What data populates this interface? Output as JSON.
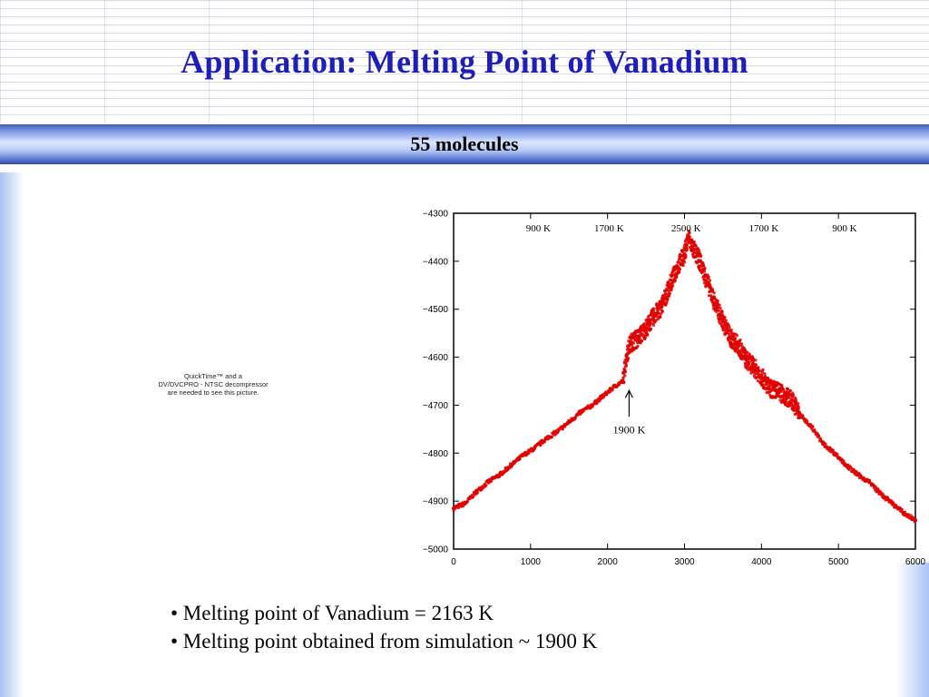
{
  "slide": {
    "title": "Application:  Melting Point of Vanadium",
    "subtitle": "55 molecules"
  },
  "media_placeholder": {
    "lines": [
      "QuickTime™ and a",
      "DV/DVCPRO - NTSC decompressor",
      "are needed to see this picture."
    ]
  },
  "bullets": [
    "• Melting point of Vanadium = 2163 K",
    "• Melting point obtained from simulation ~ 1900 K"
  ],
  "chart_data": {
    "type": "scatter",
    "title": "",
    "xlabel": "",
    "ylabel": "",
    "xlim": [
      0,
      6000
    ],
    "ylim": [
      -5000,
      -4300
    ],
    "xticks": [
      0,
      1000,
      2000,
      3000,
      4000,
      5000,
      6000
    ],
    "yticks": [
      -4300,
      -4400,
      -4500,
      -4600,
      -4700,
      -4800,
      -4900,
      -5000
    ],
    "xtick_labels": [
      "0",
      "1000",
      "2000",
      "3000",
      "4000",
      "5000",
      "6000"
    ],
    "ytick_labels": [
      "−4300",
      "−4400",
      "−4500",
      "−4600",
      "−4700",
      "−4800",
      "−4900",
      "−5000"
    ],
    "grid": false,
    "color": "#e00000",
    "series": [
      {
        "x": [
          0,
          150,
          300,
          450,
          600,
          750,
          900,
          1050,
          1200,
          1350,
          1500,
          1650,
          1800,
          1950,
          2100,
          2200,
          2250,
          2300,
          2400,
          2500,
          2600,
          2700,
          2800,
          2900,
          3000,
          3050,
          3100,
          3200,
          3300,
          3400,
          3500,
          3600,
          3700,
          3800,
          3900,
          4000,
          4100,
          4200,
          4300,
          4400,
          4500,
          4650,
          4800,
          4950,
          5100,
          5250,
          5400,
          5550,
          5700,
          5850,
          6000
        ],
        "y": [
          -4915,
          -4905,
          -4880,
          -4860,
          -4845,
          -4825,
          -4805,
          -4790,
          -4770,
          -4755,
          -4735,
          -4715,
          -4700,
          -4680,
          -4660,
          -4650,
          -4595,
          -4570,
          -4560,
          -4540,
          -4515,
          -4495,
          -4455,
          -4415,
          -4385,
          -4350,
          -4370,
          -4400,
          -4445,
          -4490,
          -4525,
          -4560,
          -4575,
          -4605,
          -4620,
          -4640,
          -4665,
          -4670,
          -4680,
          -4690,
          -4720,
          -4745,
          -4780,
          -4800,
          -4825,
          -4845,
          -4860,
          -4885,
          -4905,
          -4925,
          -4940
        ]
      }
    ],
    "annotations": [
      {
        "label": "900 K",
        "x": 1100
      },
      {
        "label": "1700 K",
        "x": 2020
      },
      {
        "label": "2500 K",
        "x": 3020
      },
      {
        "label": "1700 K",
        "x": 4030
      },
      {
        "label": "900 K",
        "x": 5080
      }
    ],
    "arrow_annotation": {
      "label": "1900 K",
      "x": 2280,
      "y": -4660
    }
  }
}
